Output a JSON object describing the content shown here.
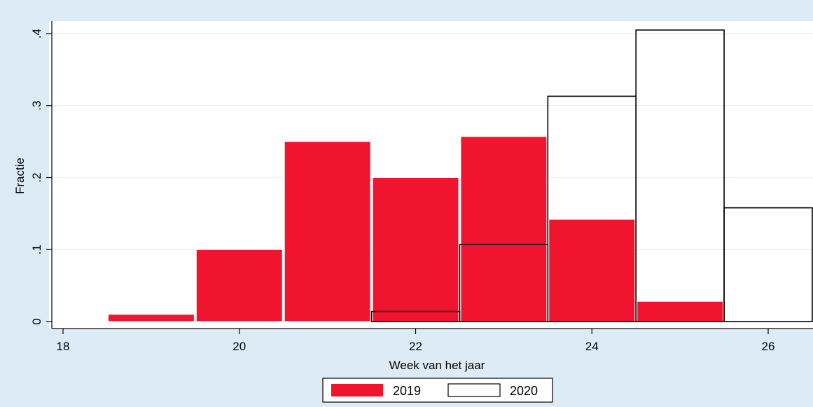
{
  "chart_data": {
    "type": "bar",
    "subtype": "histogram",
    "xlabel": "Week van het jaar",
    "ylabel": "Fractie",
    "xlim": [
      17.9,
      26.5
    ],
    "ylim": [
      0,
      0.42
    ],
    "x_ticks": [
      {
        "value": 18,
        "label": "18"
      },
      {
        "value": 20,
        "label": "20"
      },
      {
        "value": 22,
        "label": "22"
      },
      {
        "value": 24,
        "label": "24"
      },
      {
        "value": 26,
        "label": "26"
      }
    ],
    "y_ticks": [
      {
        "value": 0,
        "label": "0"
      },
      {
        "value": 0.1,
        "label": ".1"
      },
      {
        "value": 0.2,
        "label": ".2"
      },
      {
        "value": 0.3,
        "label": ".3"
      },
      {
        "value": 0.4,
        "label": ".4"
      }
    ],
    "grid": "horizontal",
    "legend_position": "bottom",
    "series": [
      {
        "name": "2019",
        "style": "filled",
        "color": "#f0142f",
        "x": [
          19,
          20,
          21,
          22,
          23,
          24,
          25
        ],
        "values": [
          0.01,
          0.1,
          0.25,
          0.2,
          0.257,
          0.142,
          0.028
        ]
      },
      {
        "name": "2020",
        "style": "outline",
        "color": "#ffffff",
        "x": [
          22,
          23,
          24,
          25,
          26
        ],
        "values": [
          0.014,
          0.107,
          0.313,
          0.405,
          0.158
        ]
      }
    ],
    "colors": {
      "background": "#dcebf6",
      "plot_area": "#ffffff",
      "grid": "#e8eef3",
      "series_2019": "#f0142f",
      "outline": "#000000"
    }
  }
}
